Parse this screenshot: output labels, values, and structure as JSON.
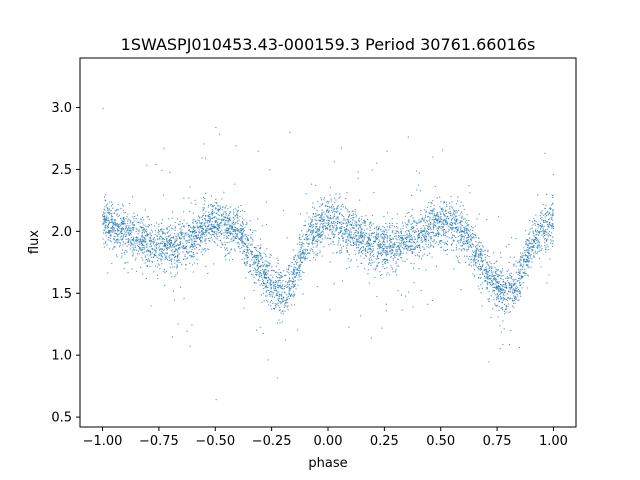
{
  "chart_data": {
    "type": "scatter",
    "title": "1SWASPJ010453.43-000159.3 Period 30761.66016s",
    "xlabel": "phase",
    "ylabel": "flux",
    "xlim": [
      -1.1,
      1.1
    ],
    "ylim": [
      0.42,
      3.4
    ],
    "xticks": [
      -1.0,
      -0.75,
      -0.5,
      -0.25,
      0.0,
      0.25,
      0.5,
      0.75,
      1.0
    ],
    "xtick_labels": [
      "−1.00",
      "−0.75",
      "−0.50",
      "−0.25",
      "0.00",
      "0.25",
      "0.50",
      "0.75",
      "1.00"
    ],
    "yticks": [
      0.5,
      1.0,
      1.5,
      2.0,
      2.5,
      3.0
    ],
    "ytick_labels": [
      "0.5",
      "1.0",
      "1.5",
      "2.0",
      "2.5",
      "3.0"
    ],
    "grid": false,
    "point_color": "#1f77b4",
    "phase_range": [
      -1.0,
      1.0
    ],
    "light_curve_trend": {
      "phase": [
        -1.0,
        -0.9,
        -0.8,
        -0.7,
        -0.6,
        -0.5,
        -0.4,
        -0.3,
        -0.25,
        -0.2,
        -0.15,
        -0.1,
        0.0,
        0.1,
        0.2,
        0.3,
        0.4,
        0.5,
        0.6,
        0.7,
        0.75,
        0.8,
        0.85,
        0.9,
        1.0
      ],
      "flux": [
        2.08,
        2.0,
        1.9,
        1.88,
        1.95,
        2.08,
        2.0,
        1.7,
        1.55,
        1.5,
        1.62,
        1.9,
        2.1,
        2.0,
        1.9,
        1.88,
        1.95,
        2.08,
        2.0,
        1.7,
        1.55,
        1.5,
        1.62,
        1.9,
        2.08
      ]
    }
  }
}
